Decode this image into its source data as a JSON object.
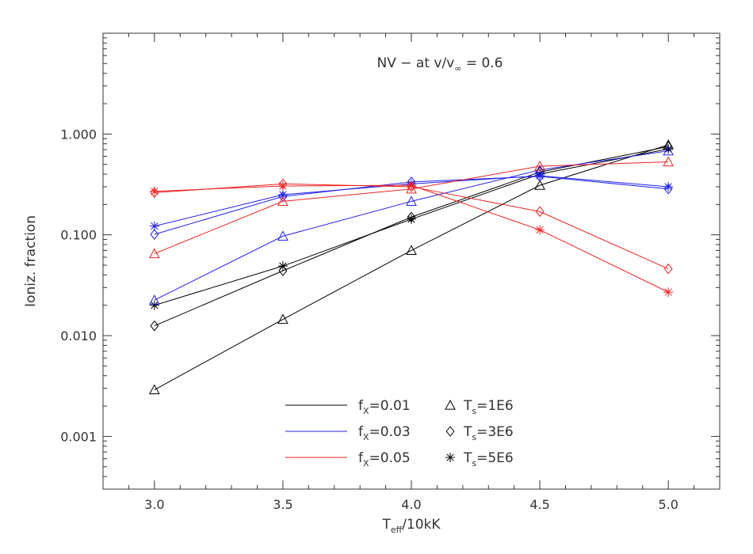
{
  "chart_data": {
    "type": "line",
    "title": "NV − at v/v",
    "title_sub": "∞",
    "title_tail": " = 0.6",
    "xlabel_main": "T",
    "xlabel_sub": "eff",
    "xlabel_tail": "/10kK",
    "ylabel": "Ioniz. fraction",
    "x_scale": "linear",
    "y_scale": "log",
    "xlim": [
      2.8,
      5.2
    ],
    "ylim": [
      0.0003,
      10
    ],
    "x_ticks": [
      3.0,
      3.5,
      4.0,
      4.5,
      5.0
    ],
    "x_tick_labels": [
      "3.0",
      "3.5",
      "4.0",
      "4.5",
      "5.0"
    ],
    "y_ticks": [
      0.001,
      0.01,
      0.1,
      1.0
    ],
    "y_tick_labels": [
      "0.001",
      "0.010",
      "0.100",
      "1.000"
    ],
    "x": [
      3.0,
      3.5,
      4.0,
      4.5,
      5.0
    ],
    "series": [
      {
        "fx": "0.01",
        "ts": "1E6",
        "color": "#000000",
        "marker": "triangle",
        "values": [
          0.0029,
          0.0145,
          0.07,
          0.31,
          0.78
        ]
      },
      {
        "fx": "0.01",
        "ts": "3E6",
        "color": "#000000",
        "marker": "diamond",
        "values": [
          0.0125,
          0.044,
          0.15,
          0.42,
          0.75
        ]
      },
      {
        "fx": "0.01",
        "ts": "5E6",
        "color": "#000000",
        "marker": "asterisk",
        "values": [
          0.02,
          0.049,
          0.143,
          0.4,
          0.71
        ]
      },
      {
        "fx": "0.03",
        "ts": "1E6",
        "color": "#2222ee",
        "marker": "triangle",
        "values": [
          0.0225,
          0.097,
          0.215,
          0.44,
          0.68
        ]
      },
      {
        "fx": "0.03",
        "ts": "3E6",
        "color": "#2222ee",
        "marker": "diamond",
        "values": [
          0.101,
          0.24,
          0.335,
          0.38,
          0.285
        ]
      },
      {
        "fx": "0.03",
        "ts": "5E6",
        "color": "#2222ee",
        "marker": "asterisk",
        "values": [
          0.122,
          0.25,
          0.32,
          0.385,
          0.3
        ]
      },
      {
        "fx": "0.05",
        "ts": "1E6",
        "color": "#ee2222",
        "marker": "triangle",
        "values": [
          0.065,
          0.215,
          0.285,
          0.48,
          0.53
        ]
      },
      {
        "fx": "0.05",
        "ts": "3E6",
        "color": "#ee2222",
        "marker": "diamond",
        "values": [
          0.262,
          0.32,
          0.3,
          0.17,
          0.046
        ]
      },
      {
        "fx": "0.05",
        "ts": "5E6",
        "color": "#ee2222",
        "marker": "asterisk",
        "values": [
          0.27,
          0.305,
          0.31,
          0.112,
          0.027
        ]
      }
    ],
    "legend": {
      "lines": [
        {
          "label_main": "f",
          "label_sub": "X",
          "label_tail": "=0.01",
          "color": "#000000"
        },
        {
          "label_main": "f",
          "label_sub": "X",
          "label_tail": "=0.03",
          "color": "#2222ee"
        },
        {
          "label_main": "f",
          "label_sub": "X",
          "label_tail": "=0.05",
          "color": "#ee2222"
        }
      ],
      "markers": [
        {
          "label_main": "T",
          "label_sub": "s",
          "label_tail": "=1E6",
          "marker": "triangle"
        },
        {
          "label_main": "T",
          "label_sub": "s",
          "label_tail": "=3E6",
          "marker": "diamond"
        },
        {
          "label_main": "T",
          "label_sub": "s",
          "label_tail": "=5E6",
          "marker": "asterisk"
        }
      ],
      "placement": "bottom-center"
    }
  }
}
